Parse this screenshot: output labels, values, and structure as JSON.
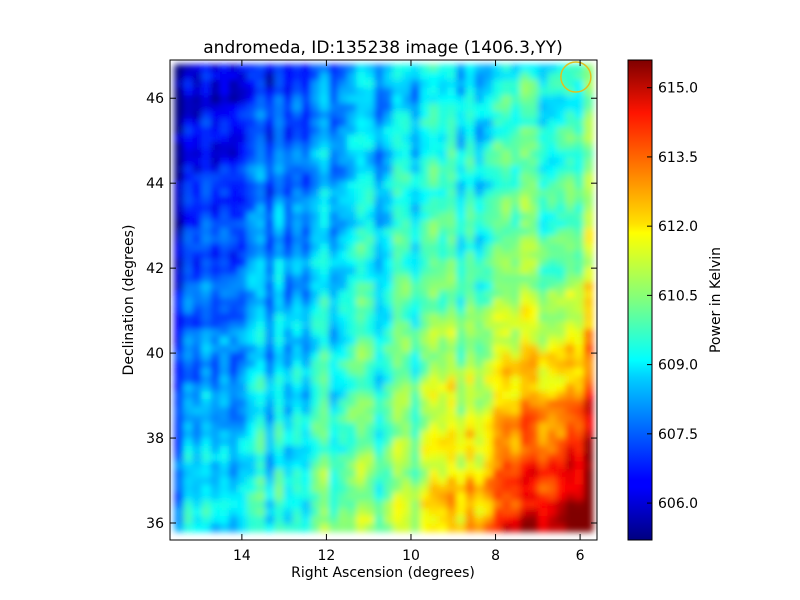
{
  "chart_data": {
    "type": "heatmap",
    "title": "andromeda, ID:135238 image (1406.3,YY)",
    "xlabel": "Right Ascension (degrees)",
    "ylabel": "Declination (degrees)",
    "xlim": [
      15.7,
      5.6
    ],
    "ylim": [
      35.6,
      46.9
    ],
    "x_ticks": [
      14,
      12,
      10,
      8,
      6
    ],
    "y_ticks": [
      36,
      38,
      40,
      42,
      44,
      46
    ],
    "x_tick_labels": [
      "14",
      "12",
      "10",
      "8",
      "6"
    ],
    "y_tick_labels": [
      "36",
      "38",
      "40",
      "42",
      "44",
      "46"
    ],
    "colorbar": {
      "label": "Power in Kelvin",
      "range": [
        605.2,
        615.6
      ],
      "ticks": [
        606.0,
        607.5,
        609.0,
        610.5,
        612.0,
        613.5,
        615.0
      ],
      "tick_labels": [
        "606.0",
        "607.5",
        "609.0",
        "610.5",
        "612.0",
        "613.5",
        "615.0"
      ],
      "colormap": "jet"
    },
    "grid": false,
    "field": {
      "ra_range": [
        15.6,
        5.7
      ],
      "dec_range": [
        35.8,
        46.8
      ],
      "trend": "power increases from upper-left (~606.5 K) toward lower-right (~615 K), vertical striping along declination"
    },
    "marker": {
      "shape": "circle",
      "ra": 6.1,
      "dec": 46.5,
      "color": "#e0c020"
    }
  }
}
